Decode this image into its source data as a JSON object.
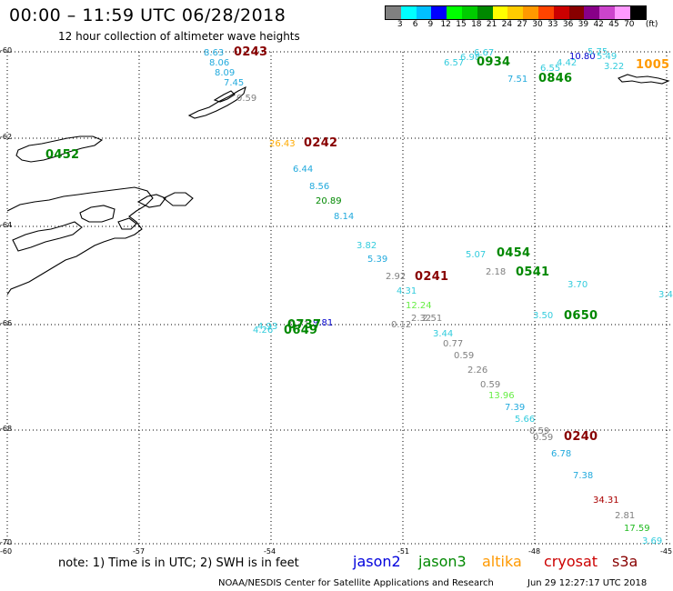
{
  "header": {
    "title": "00:00 – 11:59 UTC 06/28/2018",
    "subtitle": "12 hour collection of altimeter wave heights"
  },
  "colorbar": {
    "colors": [
      "#808080",
      "#00ffff",
      "#00bfff",
      "#0000ff",
      "#00ff00",
      "#00cc00",
      "#008800",
      "#ffff00",
      "#ffcc00",
      "#ff9900",
      "#ff4400",
      "#cc0000",
      "#880000",
      "#880088",
      "#cc44cc",
      "#ff99ff",
      "#000000"
    ],
    "labels": [
      "3",
      "6",
      "9",
      "12",
      "15",
      "18",
      "21",
      "24",
      "27",
      "30",
      "33",
      "36",
      "39",
      "42",
      "45",
      "70",
      "(ft)"
    ]
  },
  "axes": {
    "lat_labels": [
      "-60",
      "-62",
      "-64",
      "-66",
      "-68",
      "-70"
    ],
    "lon_labels": [
      "-60",
      "-57",
      "-54",
      "-51",
      "-48",
      "-45"
    ]
  },
  "observations": [
    {
      "v": "8.63",
      "c": "#22aadd"
    },
    {
      "v": "8.06",
      "c": "#22aadd"
    },
    {
      "v": "8.09",
      "c": "#22aadd"
    },
    {
      "v": "7.45",
      "c": "#22aadd"
    },
    {
      "v": "0.59",
      "c": "#808080"
    },
    {
      "v": "26.43",
      "c": "#ffaa00"
    },
    {
      "v": "6.44",
      "c": "#22aadd"
    },
    {
      "v": "8.56",
      "c": "#22aadd"
    },
    {
      "v": "20.89",
      "c": "#008800"
    },
    {
      "v": "8.14",
      "c": "#22aadd"
    },
    {
      "v": "3.82",
      "c": "#33ccdd"
    },
    {
      "v": "5.39",
      "c": "#22aadd"
    },
    {
      "v": "2.92",
      "c": "#808080"
    },
    {
      "v": "4.31",
      "c": "#33ccdd"
    },
    {
      "v": "12.24",
      "c": "#66ee44"
    },
    {
      "v": "2.32",
      "c": "#808080"
    },
    {
      "v": "2.51",
      "c": "#808080"
    },
    {
      "v": "0.12",
      "c": "#808080"
    },
    {
      "v": "3.44",
      "c": "#33ccdd"
    },
    {
      "v": "0.77",
      "c": "#808080"
    },
    {
      "v": "0.59",
      "c": "#808080"
    },
    {
      "v": "2.26",
      "c": "#808080"
    },
    {
      "v": "0.59",
      "c": "#808080"
    },
    {
      "v": "13.96",
      "c": "#66ee44"
    },
    {
      "v": "7.39",
      "c": "#22aadd"
    },
    {
      "v": "5.66",
      "c": "#33ccdd"
    },
    {
      "v": "0.59",
      "c": "#808080"
    },
    {
      "v": "0.59",
      "c": "#808080"
    },
    {
      "v": "6.78",
      "c": "#22aadd"
    },
    {
      "v": "7.38",
      "c": "#22aadd"
    },
    {
      "v": "34.31",
      "c": "#aa0000"
    },
    {
      "v": "2.81",
      "c": "#808080"
    },
    {
      "v": "17.59",
      "c": "#22bb22"
    },
    {
      "v": "3.69",
      "c": "#33ccdd"
    },
    {
      "v": "5.07",
      "c": "#33ccdd"
    },
    {
      "v": "2.18",
      "c": "#808080"
    },
    {
      "v": "3.70",
      "c": "#33ccdd"
    },
    {
      "v": "3.4",
      "c": "#33ccdd"
    },
    {
      "v": "3.50",
      "c": "#33ccdd"
    },
    {
      "v": "4.93",
      "c": "#33ccdd"
    },
    {
      "v": "4.26",
      "c": "#33ccdd"
    },
    {
      "v": "0.71",
      "c": "#808080"
    },
    {
      "v": "9.81",
      "c": "#0000cc"
    },
    {
      "v": "6.57",
      "c": "#33ccdd"
    },
    {
      "v": "6.98",
      "c": "#33ccdd"
    },
    {
      "v": "6.67",
      "c": "#33ccdd"
    },
    {
      "v": "7.51",
      "c": "#22aadd"
    },
    {
      "v": "6.55",
      "c": "#33ccdd"
    },
    {
      "v": "4.42",
      "c": "#33ccdd"
    },
    {
      "v": "10.80",
      "c": "#0000cc"
    },
    {
      "v": "5.75",
      "c": "#33ccdd"
    },
    {
      "v": "5.49",
      "c": "#33ccdd"
    },
    {
      "v": "3.22",
      "c": "#33ccdd"
    }
  ],
  "time_markers": [
    {
      "t": "0243",
      "c": "#880000"
    },
    {
      "t": "0452",
      "c": "#008800"
    },
    {
      "t": "0242",
      "c": "#880000"
    },
    {
      "t": "0241",
      "c": "#880000"
    },
    {
      "t": "0454",
      "c": "#008800"
    },
    {
      "t": "0541",
      "c": "#008800"
    },
    {
      "t": "0650",
      "c": "#008800"
    },
    {
      "t": "0240",
      "c": "#880000"
    },
    {
      "t": "0934",
      "c": "#008800"
    },
    {
      "t": "0846",
      "c": "#008800"
    },
    {
      "t": "1005",
      "c": "#ff9900"
    },
    {
      "t": "0737",
      "c": "#008800"
    },
    {
      "t": "0649",
      "c": "#008800"
    }
  ],
  "footer": {
    "note": "note: 1) Time is in UTC; 2) SWH is in feet",
    "legend": [
      {
        "label": "jason2",
        "c": "#0000dd"
      },
      {
        "label": "jason3",
        "c": "#008800"
      },
      {
        "label": "altika",
        "c": "#ff9900"
      },
      {
        "label": "cryosat",
        "c": "#cc0000"
      },
      {
        "label": "s3a",
        "c": "#880000"
      }
    ],
    "credit": "NOAA/NESDIS Center for Satellite Applications and Research",
    "timestamp": "Jun 29 12:27:17 UTC 2018"
  }
}
